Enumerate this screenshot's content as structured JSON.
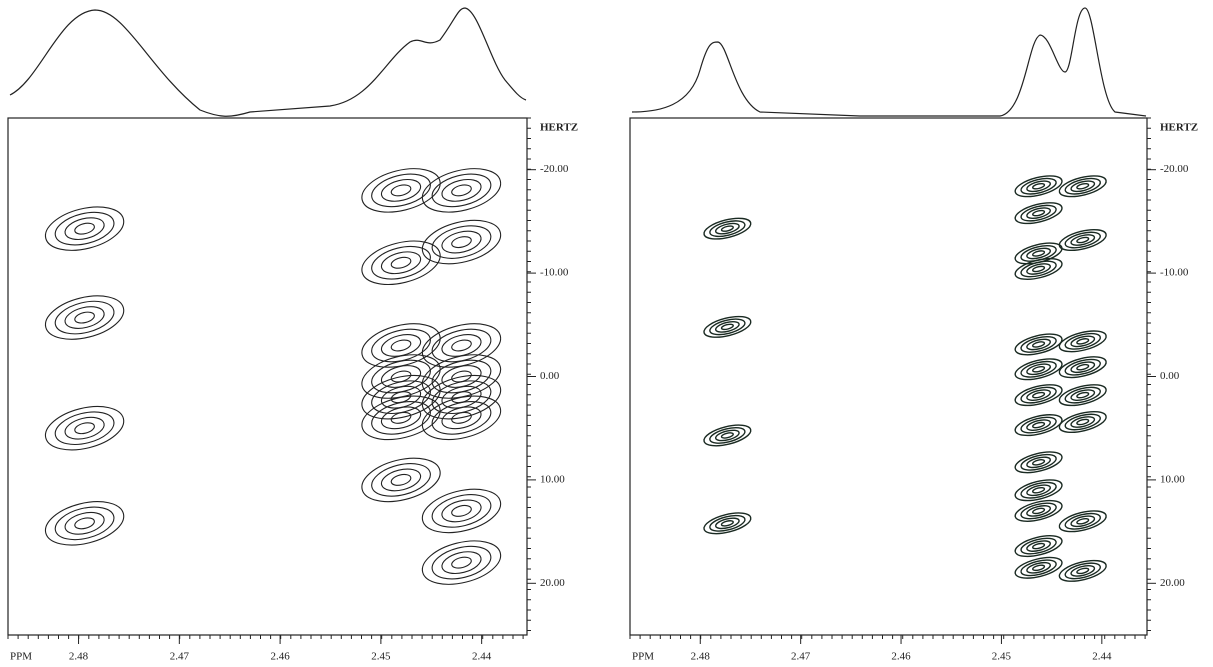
{
  "chart_data": [
    {
      "type": "contour",
      "x_label": "PPM",
      "y_label": "HERTZ",
      "color": "#222222",
      "xlim": [
        2.487,
        2.4355
      ],
      "xticks": [
        2.48,
        2.47,
        2.46,
        2.45,
        2.44
      ],
      "ylim": [
        -25,
        25
      ],
      "yticks": [
        {
          "value": -20,
          "label": "-20.00"
        },
        {
          "value": -10,
          "label": "-10.00"
        },
        {
          "value": 0,
          "label": "0.00"
        },
        {
          "value": 10,
          "label": "10.00"
        },
        {
          "value": 20,
          "label": "20.00"
        }
      ],
      "x": [
        2.4794,
        2.4794,
        2.4794,
        2.4794,
        2.448,
        2.448,
        2.448,
        2.448,
        2.448,
        2.448,
        2.448,
        2.442,
        2.442,
        2.442,
        2.442,
        2.442,
        2.442,
        2.442,
        2.442
      ],
      "values": [
        -14.3,
        -5.7,
        5,
        14.2,
        -18,
        -11,
        -3,
        0,
        2,
        4,
        10,
        -18,
        -13,
        -3,
        0,
        2,
        4,
        13,
        18
      ]
    },
    {
      "type": "contour",
      "x_label": "PPM",
      "y_label": "HERTZ",
      "color": "#1a2a22",
      "xlim": [
        2.487,
        2.4355
      ],
      "xticks": [
        2.48,
        2.47,
        2.46,
        2.45,
        2.44
      ],
      "ylim": [
        -25,
        25
      ],
      "yticks": [
        {
          "value": -20,
          "label": "-20.00"
        },
        {
          "value": -10,
          "label": "-10.00"
        },
        {
          "value": 0,
          "label": "0.00"
        },
        {
          "value": 10,
          "label": "10.00"
        },
        {
          "value": 20,
          "label": "20.00"
        }
      ],
      "x": [
        2.4773,
        2.4773,
        2.4773,
        2.4773,
        2.4463,
        2.4463,
        2.4463,
        2.4463,
        2.4463,
        2.4463,
        2.4463,
        2.4463,
        2.4463,
        2.4463,
        2.4463,
        2.4463,
        2.4463,
        2.4419,
        2.4419,
        2.4419,
        2.4419,
        2.4419,
        2.4419,
        2.4419,
        2.4419
      ],
      "values": [
        -14.3,
        -4.8,
        5.7,
        14.2,
        -18.4,
        -15.8,
        -11.9,
        -10.4,
        -3.1,
        -0.7,
        1.8,
        4.7,
        8.3,
        11,
        13,
        16.4,
        18.5,
        -18.4,
        -13.2,
        -3.4,
        -0.9,
        1.8,
        4.4,
        14,
        18.8
      ]
    }
  ]
}
